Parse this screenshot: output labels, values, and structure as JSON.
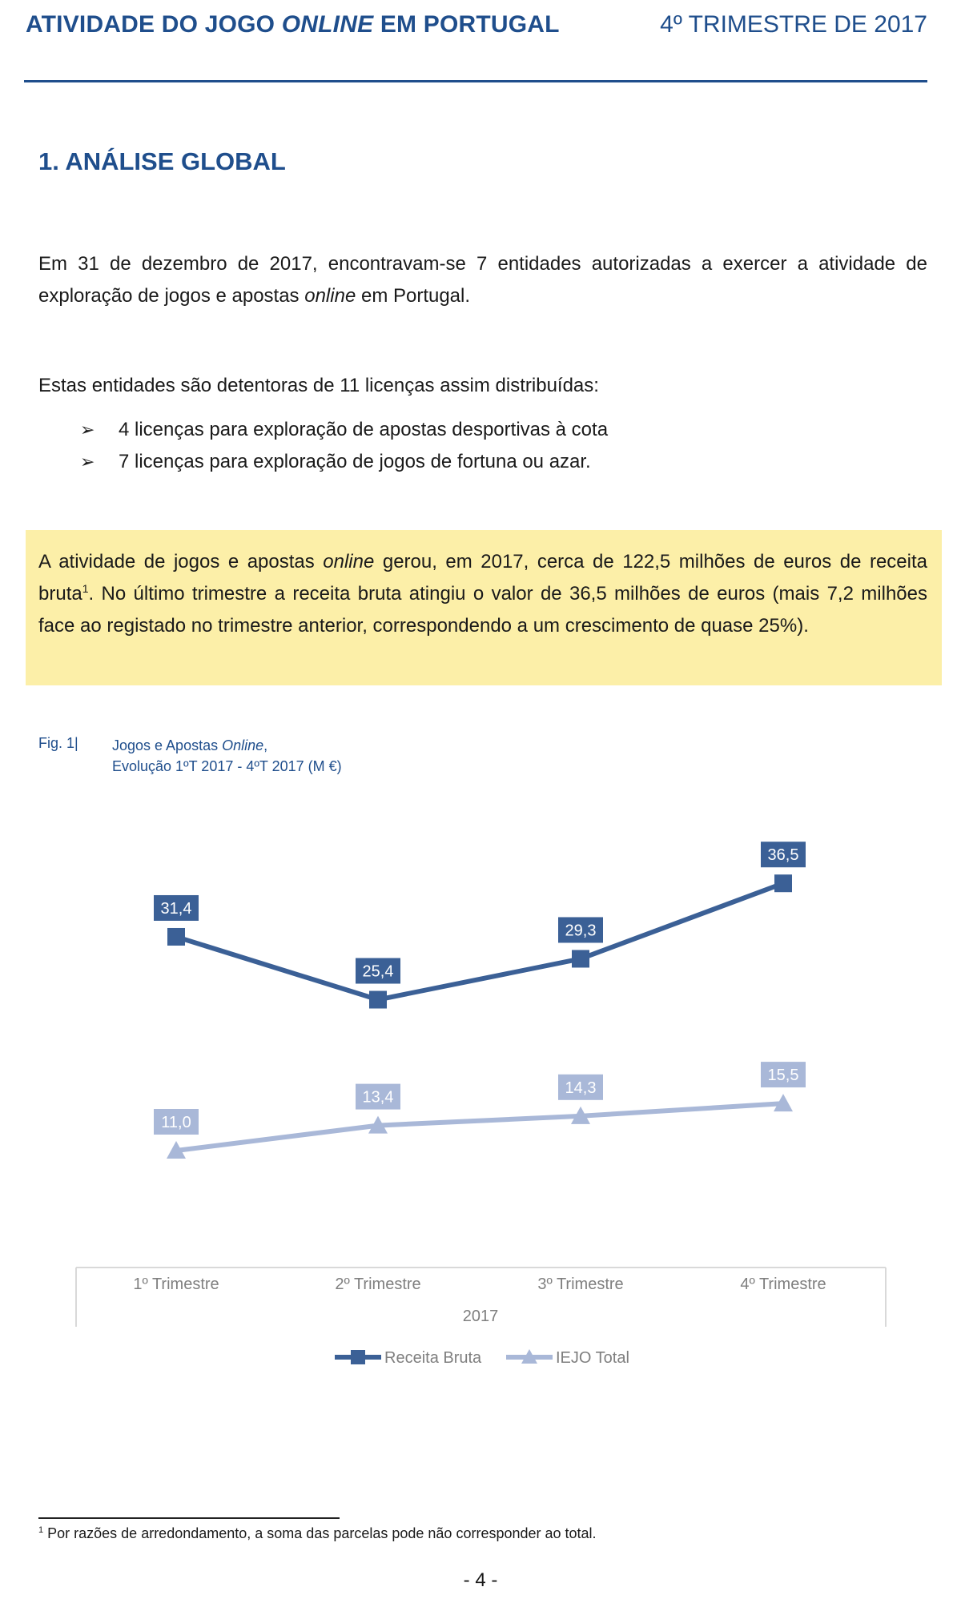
{
  "header": {
    "title_part1": "ATIVIDADE DO JOGO ",
    "title_italic": "ONLINE",
    "title_part2": " EM PORTUGAL",
    "period": "4º TRIMESTRE DE 2017"
  },
  "section": {
    "title": "1. ANÁLISE GLOBAL"
  },
  "paragraph1": {
    "line_a": "Em 31 de dezembro de 2017, encontravam-se 7 entidades autorizadas a exercer a atividade de exploração de jogos e apostas ",
    "italic": "online",
    "line_b": " em Portugal."
  },
  "paragraph2": "Estas entidades são detentoras de 11 licenças assim distribuídas:",
  "bullets": [
    "4 licenças para exploração de apostas desportivas à cota",
    "7 licenças para exploração de jogos de fortuna ou azar."
  ],
  "bullet_mark": "➢",
  "highlight": {
    "part1": "A atividade de jogos e apostas ",
    "italic": "online",
    "part2": " gerou, em 2017, cerca de 122,5 milhões de euros de receita bruta",
    "sup": "1",
    "part3": ". No último trimestre a receita bruta atingiu o valor de 36,5 milhões de euros (mais 7,2 milhões face ao registado no trimestre anterior, correspondendo a um crescimento de quase 25%)."
  },
  "figure": {
    "number": "Fig. 1|",
    "caption_line1_a": "Jogos e Apostas ",
    "caption_line1_italic": "Online",
    "caption_line1_b": ",",
    "caption_line2": "Evolução 1ºT 2017 - 4ºT 2017 (M €)"
  },
  "chart_data": {
    "type": "line",
    "categories": [
      "1º Trimestre",
      "2º Trimestre",
      "3º Trimestre",
      "4º Trimestre"
    ],
    "category_group_label": "2017",
    "series": [
      {
        "name": "Receita Bruta",
        "values": [
          31.4,
          25.4,
          29.3,
          36.5
        ],
        "labels": [
          "31,4",
          "25,4",
          "29,3",
          "36,5"
        ],
        "color": "#3b6096",
        "marker": "square"
      },
      {
        "name": "IEJO Total",
        "values": [
          11.0,
          13.4,
          14.3,
          15.5
        ],
        "labels": [
          "11,0",
          "13,4",
          "14,3",
          "15,5"
        ],
        "color": "#a9b8d8",
        "marker": "triangle"
      }
    ],
    "grid": false,
    "legend": "bottom"
  },
  "footnote": {
    "sup": "1",
    "text": " Por razões de arredondamento, a soma das parcelas pode não corresponder ao total."
  },
  "page_number": "- 4 -"
}
